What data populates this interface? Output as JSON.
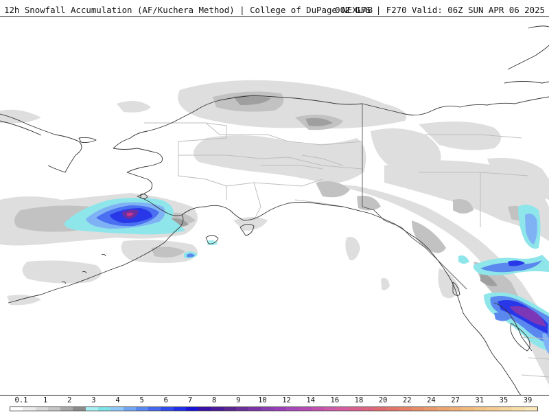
{
  "header": {
    "title": "12h Snowfall Accumulation (AF/Kuchera Method) | College of DuPage NEXLAB",
    "run": "00Z GFS | F270 Valid: 06Z SUN APR 06 2025"
  },
  "colors": {
    "border": "#222222",
    "coast": "#333333",
    "admin_lines": "#bdbdbd",
    "light_gray": "#d9d9d9",
    "mid_gray": "#bdbdbd",
    "dark_gray": "#9e9e9e",
    "cyan": "#8ee6ea",
    "light_blue": "#7fb2f5",
    "blue": "#3e63f0",
    "deep_blue": "#1b2ee6",
    "purple": "#8a3fb8",
    "magenta": "#c7358f"
  },
  "legend": {
    "labels": [
      "0.1",
      "1",
      "2",
      "3",
      "4",
      "5",
      "6",
      "7",
      "8",
      "9",
      "10",
      "12",
      "14",
      "16",
      "18",
      "20",
      "22",
      "24",
      "27",
      "31",
      "35",
      "39"
    ],
    "swatch_colors": [
      "#ffffff",
      "#ececec",
      "#d9d9d9",
      "#c6c6c6",
      "#a8a8a8",
      "#8c8c8c",
      "#a9f0f3",
      "#7fe3e8",
      "#8fc8f6",
      "#72a6f2",
      "#5b88ee",
      "#4568ec",
      "#2f4aeb",
      "#1e2fe6",
      "#1913d8",
      "#3a10a8",
      "#4b1a98",
      "#5a2590",
      "#6a2f99",
      "#7a36a6",
      "#8a3fb0",
      "#983fb8",
      "#a548b8",
      "#b34bb2",
      "#c052ae",
      "#cb5aa8",
      "#d35d9e",
      "#d95f8f",
      "#dc6580",
      "#de6c70",
      "#e1766a",
      "#e38268",
      "#e68e69",
      "#e9996c",
      "#eca571",
      "#efb077",
      "#f1ba7d",
      "#f3c487",
      "#f5cd92",
      "#f7d69d",
      "#f9deaa",
      "#fbe6b8"
    ]
  },
  "map": {
    "region": "Alaska and northwestern Canada",
    "features": [
      "Bering Sea snowfall maximum",
      "Gulf of Alaska coastal snowfall",
      "British Columbia coast snowfall"
    ]
  }
}
